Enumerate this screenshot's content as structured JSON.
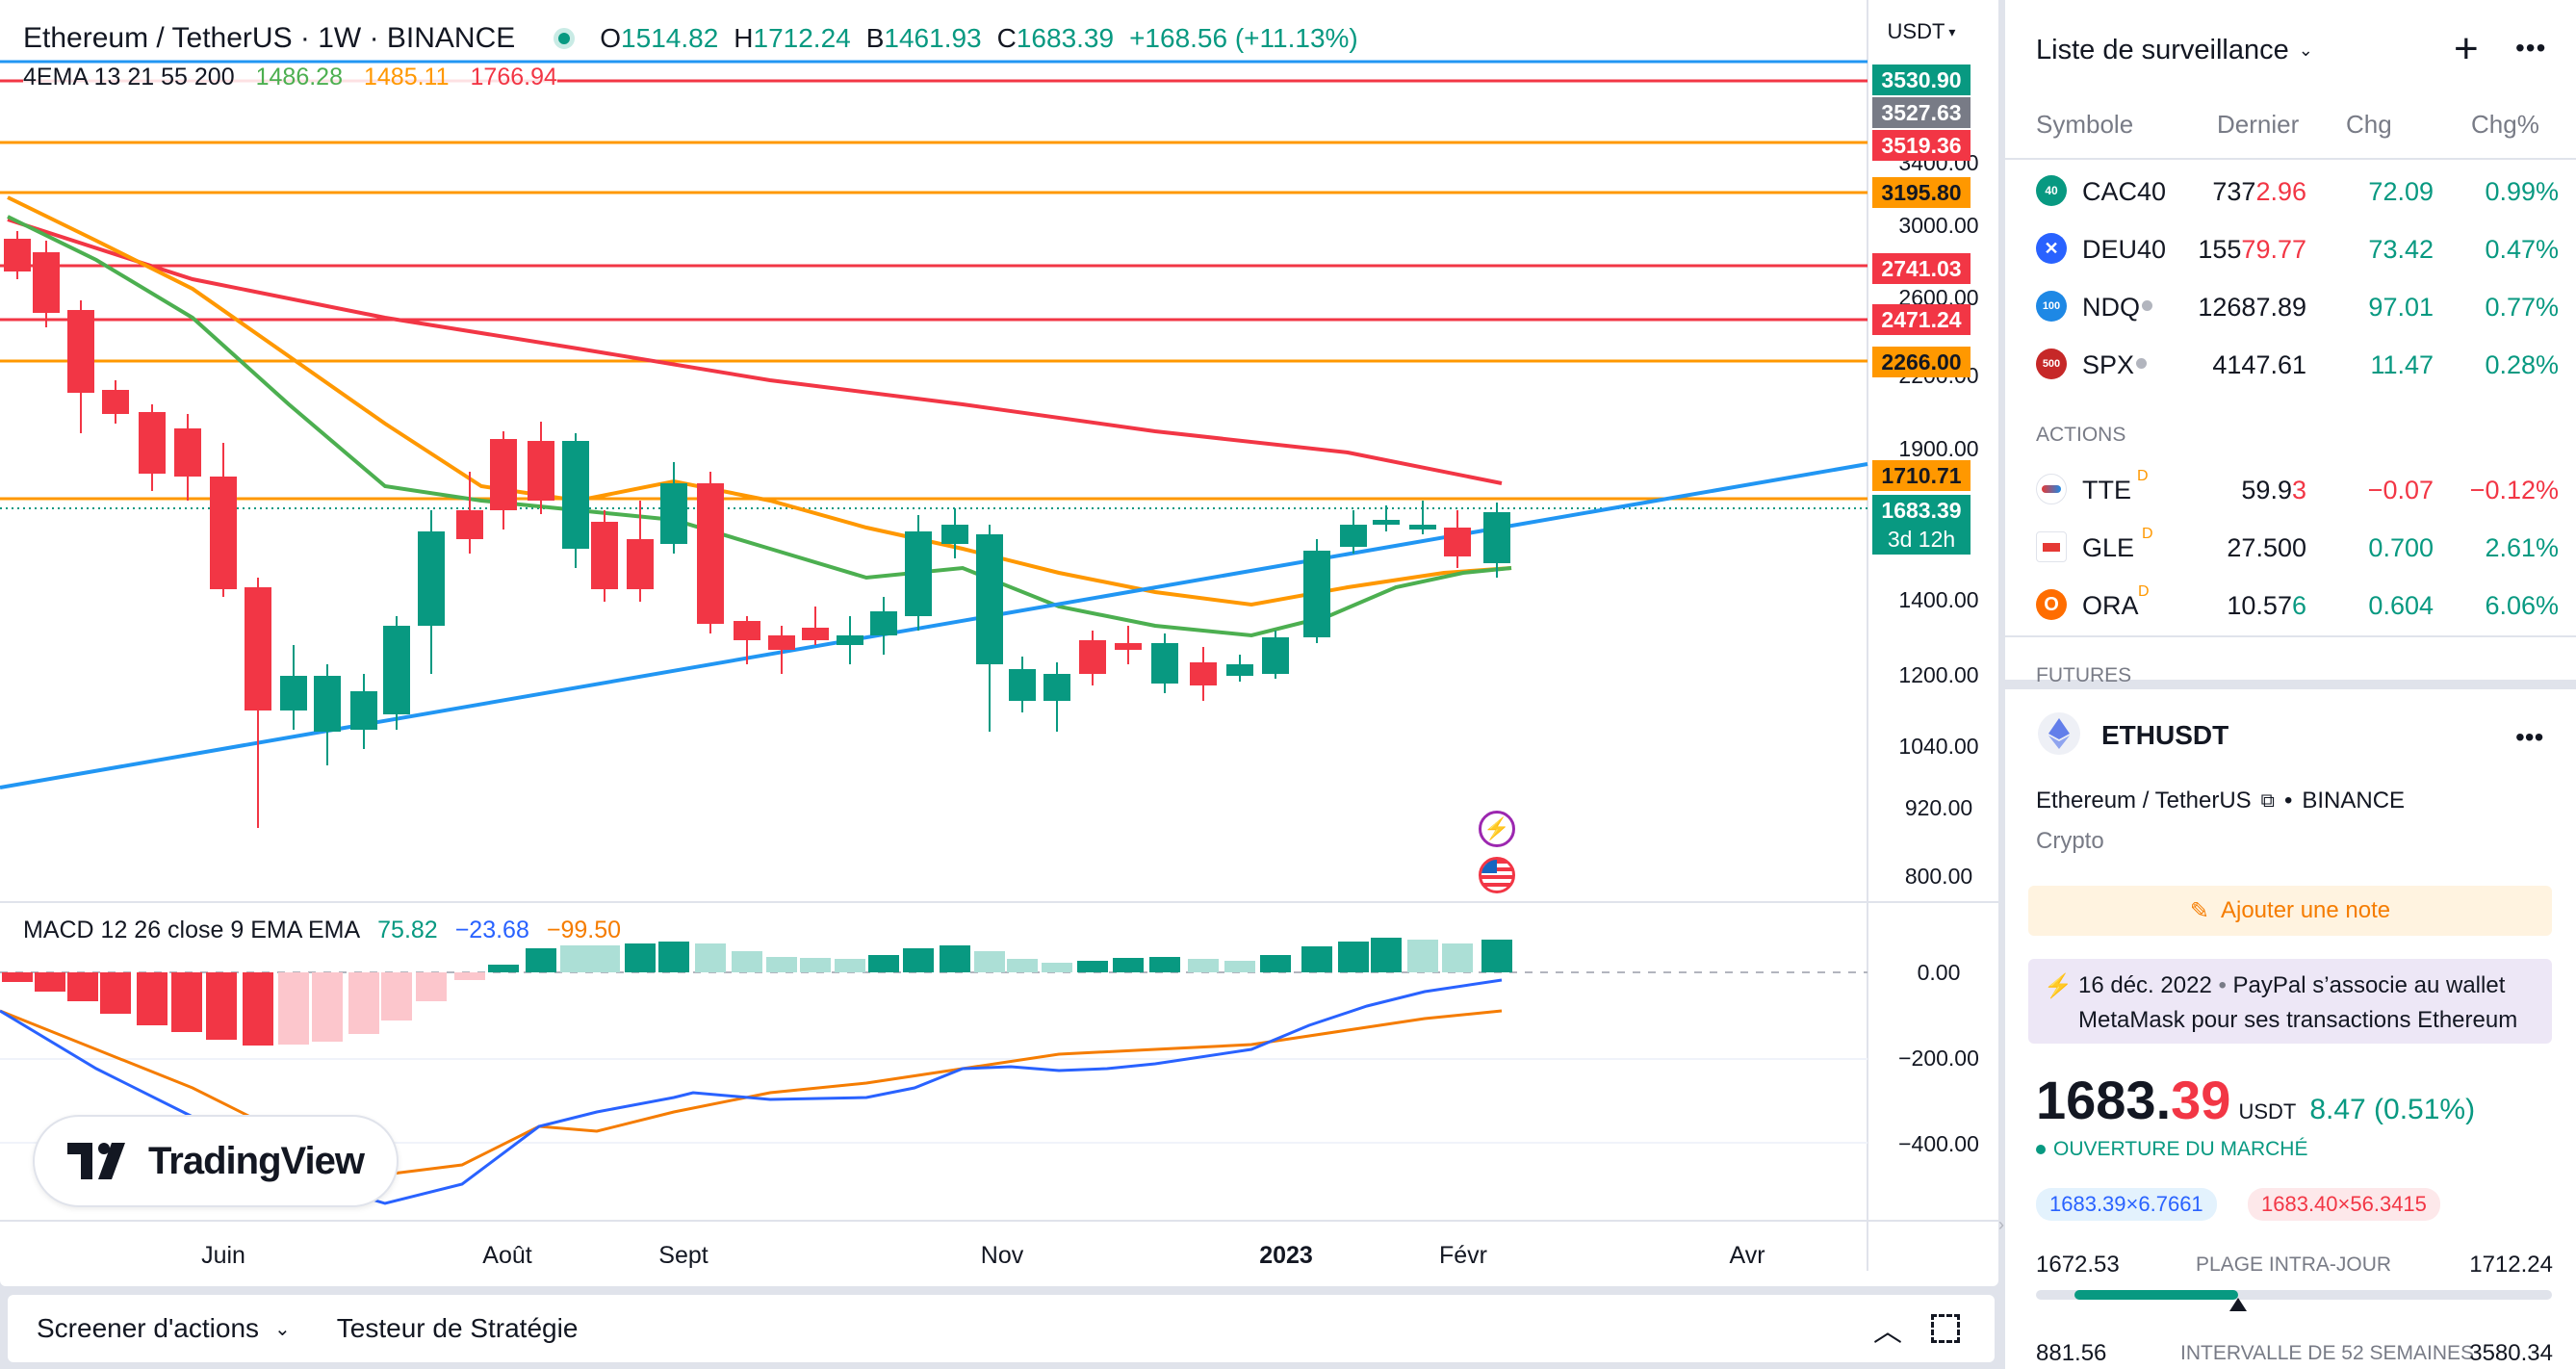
{
  "chart": {
    "symbol_title": "Ethereum / TetherUS · 1W · BINANCE",
    "ohlc": {
      "o_label": "O",
      "o": "1514.82",
      "h_label": "H",
      "h": "1712.24",
      "b_label": "B",
      "b": "1461.93",
      "c_label": "C",
      "c": "1683.39",
      "change": "+168.56 (+11.13%)"
    },
    "ema_legend": {
      "name": "4EMA 13 21 55 200",
      "v1": "1486.28",
      "v2": "1485.11",
      "v3": "1766.94"
    },
    "macd_legend": {
      "name": "MACD 12 26 close 9 EMA EMA",
      "v1": "75.82",
      "v2": "−23.68",
      "v3": "−99.50"
    },
    "currency": "USDT",
    "price_axis": [
      "3400.00",
      "3000.00",
      "2600.00",
      "2200.00",
      "1900.00",
      "1400.00",
      "1200.00",
      "1040.00",
      "920.00",
      "800.00"
    ],
    "macd_axis": [
      "0.00",
      "−200.00",
      "−400.00"
    ],
    "price_tags": [
      {
        "label": "3530.90",
        "color": "#089981"
      },
      {
        "label": "3527.63",
        "color": "#787b86"
      },
      {
        "label": "3519.36",
        "color": "#f23645"
      },
      {
        "label": "3195.80",
        "color": "#ff9800"
      },
      {
        "label": "2741.03",
        "color": "#f23645"
      },
      {
        "label": "2471.24",
        "color": "#f23645"
      },
      {
        "label": "2266.00",
        "color": "#ff9800"
      },
      {
        "label": "1710.71",
        "color": "#ff9800"
      },
      {
        "label": "1683.39",
        "color": "#089981"
      }
    ],
    "countdown": "3d 12h",
    "time_axis": [
      "Juin",
      "Août",
      "Sept",
      "Nov",
      "2023",
      "Févr",
      "Avr"
    ],
    "logo_text": "TradingView",
    "colors": {
      "up": "#089981",
      "down": "#f23645",
      "ema13": "#4caf50",
      "ema21": "#ff9800",
      "ema200": "#f23645",
      "trend": "#2196f3"
    }
  },
  "bottom_bar": {
    "tab1": "Screener d'actions",
    "tab2": "Testeur de Stratégie"
  },
  "watchlist": {
    "title": "Liste de surveillance",
    "columns": [
      "Symbole",
      "Dernier",
      "Chg",
      "Chg%"
    ],
    "indices": [
      {
        "badge": "40",
        "badge_color": "#089981",
        "symbol": "CAC40",
        "last_a": "737",
        "last_b": "2.96",
        "chg": "72.09",
        "chgp": "0.99%"
      },
      {
        "badge": "✕",
        "badge_color": "#2962ff",
        "symbol": "DEU40",
        "last_a": "155",
        "last_b": "79.77",
        "chg": "73.42",
        "chgp": "0.47%"
      },
      {
        "badge": "100",
        "badge_color": "#1e88e5",
        "symbol": "NDQ",
        "last_a": "12687.89",
        "last_b": "",
        "chg": "97.01",
        "chgp": "0.77%"
      },
      {
        "badge": "500",
        "badge_color": "#c62828",
        "symbol": "SPX",
        "last_a": "4147.61",
        "last_b": "",
        "chg": "11.47",
        "chgp": "0.28%"
      }
    ],
    "section_actions": "ACTIONS",
    "actions": [
      {
        "symbol": "TTE",
        "sup": "D",
        "last_a": "59.9",
        "last_b": "3",
        "chg": "−0.07",
        "chgp": "−0.12%",
        "dir": "down"
      },
      {
        "symbol": "GLE",
        "sup": "D",
        "last_a": "27.500",
        "last_b": "",
        "chg": "0.700",
        "chgp": "2.61%",
        "dir": "up"
      },
      {
        "symbol": "ORA",
        "sup": "D",
        "last_a": "10.57",
        "last_b": "6",
        "chg": "0.604",
        "chgp": "6.06%",
        "dir": "up"
      }
    ],
    "section_futures": "FUTURES"
  },
  "details": {
    "symbol": "ETHUSDT",
    "name": "Ethereum / TetherUS",
    "exchange": "BINANCE",
    "category": "Crypto",
    "note_button": "Ajouter une note",
    "news_date": "16 déc. 2022",
    "news_text_1": "PayPal s’associe au wallet",
    "news_text_2": "MetaMask pour ses transactions Ethereum",
    "price_int": "1683.",
    "price_dec": "39",
    "price_currency": "USDT",
    "price_change": "8.47 (0.51%)",
    "market_status": "OUVERTURE DU MARCHÉ",
    "bid": "1683.39×6.7661",
    "ask": "1683.40×56.3415",
    "day_low": "1672.53",
    "day_range_label": "PLAGE INTRA-JOUR",
    "day_high": "1712.24",
    "year_low": "881.56",
    "year_range_label": "INTERVALLE DE 52 SEMAINES",
    "year_high": "3580.34",
    "day_range_position": 0.28
  }
}
